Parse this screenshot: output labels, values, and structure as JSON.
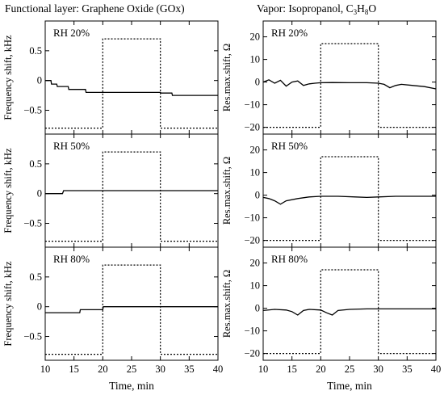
{
  "figure": {
    "left_title": "Functional layer: Graphene Oxide (GOx)",
    "right_title_prefix": "Vapor: Isopropanol, C",
    "right_title_sub1": "3",
    "right_title_mid1": "H",
    "right_title_sub2": "8",
    "right_title_suffix": "O",
    "xlabel": "Time, min"
  },
  "chart_data": [
    {
      "type": "line",
      "panel": "RH 20%",
      "column": "frequency",
      "ylabel": "Frequency shift, kHz",
      "xlim": [
        10,
        40
      ],
      "ylim": [
        -0.9,
        1.0
      ],
      "xticks": [
        10,
        15,
        20,
        25,
        30,
        35,
        40
      ],
      "yticks": [
        -0.5,
        0,
        0.5
      ],
      "series": [
        {
          "style": "solid",
          "x": [
            10,
            11,
            11.1,
            12,
            12.1,
            14,
            14.1,
            17,
            17.1,
            30,
            30.1,
            32,
            32.1,
            40
          ],
          "y": [
            0,
            0,
            -0.06,
            -0.06,
            -0.1,
            -0.1,
            -0.15,
            -0.15,
            -0.2,
            -0.2,
            -0.21,
            -0.21,
            -0.25,
            -0.25
          ]
        },
        {
          "style": "dotted",
          "x": [
            10,
            20,
            20,
            30,
            30,
            40
          ],
          "y": [
            -0.8,
            -0.8,
            0.7,
            0.7,
            -0.8,
            -0.8
          ]
        }
      ]
    },
    {
      "type": "line",
      "panel": "RH 20%",
      "column": "resistance",
      "ylabel": "Res.max.shift, Ω",
      "xlim": [
        10,
        40
      ],
      "ylim": [
        -23,
        27
      ],
      "xticks": [
        10,
        15,
        20,
        25,
        30,
        35,
        40
      ],
      "yticks": [
        -20,
        -10,
        0,
        10,
        20
      ],
      "series": [
        {
          "style": "solid",
          "x": [
            10,
            11,
            12,
            13,
            14,
            15,
            16,
            17,
            18,
            19,
            20,
            22,
            25,
            28,
            30,
            31,
            32,
            33,
            34,
            36,
            38,
            40
          ],
          "y": [
            0,
            1,
            -0.5,
            0.8,
            -1.8,
            0,
            0.5,
            -1.5,
            -0.8,
            -0.5,
            -0.3,
            -0.2,
            -0.3,
            -0.3,
            -0.5,
            -1,
            -2.5,
            -1.5,
            -1,
            -1.5,
            -2,
            -3
          ]
        },
        {
          "style": "dotted",
          "x": [
            10,
            20,
            20,
            30,
            30,
            40
          ],
          "y": [
            -20,
            -20,
            17,
            17,
            -20,
            -20
          ]
        }
      ]
    },
    {
      "type": "line",
      "panel": "RH 50%",
      "column": "frequency",
      "ylabel": "Frequency shift, kHz",
      "xlim": [
        10,
        40
      ],
      "ylim": [
        -0.9,
        1.0
      ],
      "xticks": [
        10,
        15,
        20,
        25,
        30,
        35,
        40
      ],
      "yticks": [
        -0.5,
        0,
        0.5
      ],
      "series": [
        {
          "style": "solid",
          "x": [
            10,
            13,
            13.2,
            40
          ],
          "y": [
            0,
            0,
            0.05,
            0.05
          ]
        },
        {
          "style": "dotted",
          "x": [
            10,
            20,
            20,
            30,
            30,
            40
          ],
          "y": [
            -0.8,
            -0.8,
            0.7,
            0.7,
            -0.8,
            -0.8
          ]
        }
      ]
    },
    {
      "type": "line",
      "panel": "RH 50%",
      "column": "resistance",
      "ylabel": "Res.max.shift, Ω",
      "xlim": [
        10,
        40
      ],
      "ylim": [
        -23,
        27
      ],
      "xticks": [
        10,
        15,
        20,
        25,
        30,
        35,
        40
      ],
      "yticks": [
        -20,
        -10,
        0,
        10,
        20
      ],
      "series": [
        {
          "style": "solid",
          "x": [
            10,
            11,
            12,
            13,
            14,
            16,
            18,
            20,
            23,
            26,
            28,
            30,
            33,
            36,
            38,
            40
          ],
          "y": [
            -1,
            -1.5,
            -2.5,
            -4,
            -2.5,
            -1.5,
            -0.8,
            -0.5,
            -0.5,
            -0.8,
            -1,
            -0.8,
            -0.5,
            -0.5,
            -0.5,
            -0.5
          ]
        },
        {
          "style": "dotted",
          "x": [
            10,
            20,
            20,
            30,
            30,
            40
          ],
          "y": [
            -20,
            -20,
            17,
            17,
            -20,
            -20
          ]
        }
      ]
    },
    {
      "type": "line",
      "panel": "RH 80%",
      "column": "frequency",
      "ylabel": "Frequency shift, kHz",
      "xlim": [
        10,
        40
      ],
      "ylim": [
        -0.9,
        1.0
      ],
      "xticks": [
        10,
        15,
        20,
        25,
        30,
        35,
        40
      ],
      "yticks": [
        -0.5,
        0,
        0.5
      ],
      "series": [
        {
          "style": "solid",
          "x": [
            10,
            16,
            16.1,
            20,
            20.1,
            40
          ],
          "y": [
            -0.1,
            -0.1,
            -0.05,
            -0.05,
            0,
            0
          ]
        },
        {
          "style": "dotted",
          "x": [
            10,
            20,
            20,
            30,
            30,
            40
          ],
          "y": [
            -0.8,
            -0.8,
            0.7,
            0.7,
            -0.8,
            -0.8
          ]
        }
      ]
    },
    {
      "type": "line",
      "panel": "RH 80%",
      "column": "resistance",
      "ylabel": "Res.max.shift, Ω",
      "xlim": [
        10,
        40
      ],
      "ylim": [
        -23,
        27
      ],
      "xticks": [
        10,
        15,
        20,
        25,
        30,
        35,
        40
      ],
      "yticks": [
        -20,
        -10,
        0,
        10,
        20
      ],
      "series": [
        {
          "style": "solid",
          "x": [
            10,
            12,
            14,
            15,
            16,
            17,
            18,
            20,
            21,
            22,
            23,
            25,
            28,
            30,
            33,
            36,
            40
          ],
          "y": [
            -1,
            -0.5,
            -0.8,
            -1.5,
            -3,
            -1,
            -0.5,
            -0.8,
            -2,
            -3,
            -1,
            -0.5,
            -0.3,
            -0.3,
            -0.3,
            -0.3,
            -0.3
          ]
        },
        {
          "style": "dotted",
          "x": [
            10,
            20,
            20,
            30,
            30,
            40
          ],
          "y": [
            -20,
            -20,
            17,
            17,
            -20,
            -20
          ]
        }
      ]
    }
  ]
}
